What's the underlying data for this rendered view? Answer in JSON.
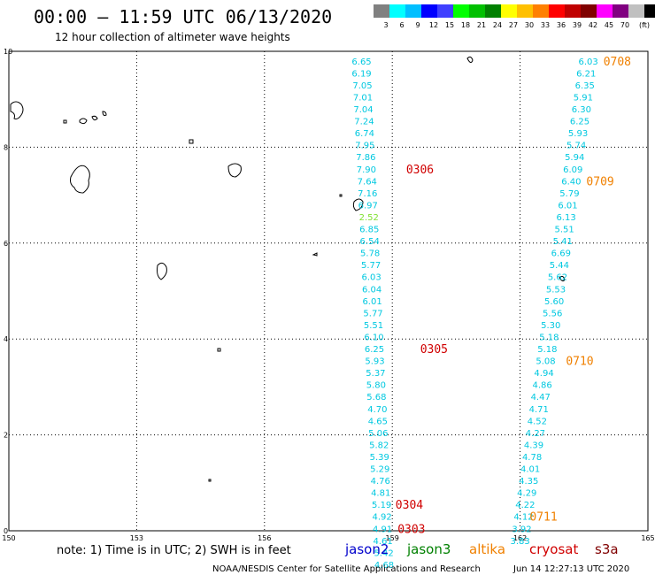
{
  "header": {
    "title": "00:00 – 11:59 UTC 06/13/2020",
    "subtitle": "12 hour collection of altimeter wave heights"
  },
  "legend": {
    "colors": [
      "#808080",
      "#00ffff",
      "#00bfff",
      "#0000ff",
      "#4040ff",
      "#00ff00",
      "#00c000",
      "#008000",
      "#ffff00",
      "#ffc000",
      "#ff8000",
      "#ff0000",
      "#c00000",
      "#800000",
      "#ff00ff",
      "#800080",
      "#c0c0c0",
      "#000000"
    ],
    "labels": [
      "3",
      "6",
      "9",
      "12",
      "15",
      "18",
      "21",
      "24",
      "27",
      "30",
      "33",
      "36",
      "39",
      "42",
      "45",
      "70",
      "(ft)"
    ]
  },
  "axes": {
    "x_ticks": [
      "150",
      "153",
      "156",
      "159",
      "162",
      "165"
    ],
    "y_ticks": [
      "0",
      "2",
      "4",
      "6",
      "8",
      "10"
    ]
  },
  "tracks": [
    {
      "color": "#00c8e0",
      "points": [
        {
          "lon": 158.28,
          "lat": 9.8,
          "v": "6.65"
        },
        {
          "lon": 158.28,
          "lat": 9.55,
          "v": "6.19"
        },
        {
          "lon": 158.3,
          "lat": 9.3,
          "v": "7.05"
        },
        {
          "lon": 158.31,
          "lat": 9.05,
          "v": "7.01"
        },
        {
          "lon": 158.32,
          "lat": 8.8,
          "v": "7.04"
        },
        {
          "lon": 158.34,
          "lat": 8.55,
          "v": "7.24"
        },
        {
          "lon": 158.35,
          "lat": 8.3,
          "v": "6.74"
        },
        {
          "lon": 158.36,
          "lat": 8.05,
          "v": "7.95"
        },
        {
          "lon": 158.38,
          "lat": 7.8,
          "v": "7.86"
        },
        {
          "lon": 158.39,
          "lat": 7.55,
          "v": "7.90"
        },
        {
          "lon": 158.41,
          "lat": 7.3,
          "v": "7.64"
        },
        {
          "lon": 158.42,
          "lat": 7.05,
          "v": "7.16"
        },
        {
          "lon": 158.43,
          "lat": 6.8,
          "v": "6.97"
        },
        {
          "lon": 158.46,
          "lat": 6.3,
          "v": "6.85"
        },
        {
          "lon": 158.47,
          "lat": 6.05,
          "v": "6.54"
        },
        {
          "lon": 158.48,
          "lat": 5.8,
          "v": "5.78"
        },
        {
          "lon": 158.5,
          "lat": 5.55,
          "v": "5.77"
        },
        {
          "lon": 158.51,
          "lat": 5.3,
          "v": "6.03"
        },
        {
          "lon": 158.52,
          "lat": 5.05,
          "v": "6.04"
        },
        {
          "lon": 158.53,
          "lat": 4.8,
          "v": "6.01"
        },
        {
          "lon": 158.55,
          "lat": 4.55,
          "v": "5.77"
        },
        {
          "lon": 158.56,
          "lat": 4.3,
          "v": "5.51"
        },
        {
          "lon": 158.57,
          "lat": 4.05,
          "v": "6.10"
        },
        {
          "lon": 158.58,
          "lat": 3.8,
          "v": "6.25"
        },
        {
          "lon": 158.59,
          "lat": 3.55,
          "v": "5.93"
        },
        {
          "lon": 158.61,
          "lat": 3.3,
          "v": "5.37"
        },
        {
          "lon": 158.62,
          "lat": 3.05,
          "v": "5.80"
        },
        {
          "lon": 158.63,
          "lat": 2.8,
          "v": "5.68"
        },
        {
          "lon": 158.65,
          "lat": 2.55,
          "v": "4.70"
        },
        {
          "lon": 158.66,
          "lat": 2.3,
          "v": "4.65"
        },
        {
          "lon": 158.67,
          "lat": 2.05,
          "v": "5.06"
        },
        {
          "lon": 158.69,
          "lat": 1.8,
          "v": "5.82"
        },
        {
          "lon": 158.7,
          "lat": 1.55,
          "v": "5.39"
        },
        {
          "lon": 158.71,
          "lat": 1.3,
          "v": "5.29"
        },
        {
          "lon": 158.72,
          "lat": 1.05,
          "v": "4.76"
        },
        {
          "lon": 158.73,
          "lat": 0.8,
          "v": "4.81"
        },
        {
          "lon": 158.75,
          "lat": 0.55,
          "v": "5.19"
        },
        {
          "lon": 158.76,
          "lat": 0.3,
          "v": "4.92"
        },
        {
          "lon": 158.77,
          "lat": 0.05,
          "v": "4.91"
        },
        {
          "lon": 158.78,
          "lat": -0.2,
          "v": "4.61"
        },
        {
          "lon": 158.8,
          "lat": -0.45,
          "v": "5.42"
        },
        {
          "lon": 158.81,
          "lat": -0.7,
          "v": "4.68"
        }
      ]
    },
    {
      "color": "#80e030",
      "points": [
        {
          "lon": 158.45,
          "lat": 6.55,
          "v": "2.52"
        }
      ]
    },
    {
      "color": "#00c8e0",
      "points": [
        {
          "lon": 163.6,
          "lat": 9.8,
          "v": "6.03"
        },
        {
          "lon": 163.55,
          "lat": 9.55,
          "v": "6.21"
        },
        {
          "lon": 163.52,
          "lat": 9.3,
          "v": "6.35"
        },
        {
          "lon": 163.48,
          "lat": 9.05,
          "v": "5.91"
        },
        {
          "lon": 163.44,
          "lat": 8.8,
          "v": "6.30"
        },
        {
          "lon": 163.4,
          "lat": 8.55,
          "v": "6.25"
        },
        {
          "lon": 163.36,
          "lat": 8.3,
          "v": "5.93"
        },
        {
          "lon": 163.32,
          "lat": 8.05,
          "v": "5.74"
        },
        {
          "lon": 163.28,
          "lat": 7.8,
          "v": "5.94"
        },
        {
          "lon": 163.24,
          "lat": 7.55,
          "v": "6.09"
        },
        {
          "lon": 163.2,
          "lat": 7.3,
          "v": "6.40"
        },
        {
          "lon": 163.16,
          "lat": 7.05,
          "v": "5.79"
        },
        {
          "lon": 163.12,
          "lat": 6.8,
          "v": "6.01"
        },
        {
          "lon": 163.08,
          "lat": 6.55,
          "v": "6.13"
        },
        {
          "lon": 163.04,
          "lat": 6.3,
          "v": "5.51"
        },
        {
          "lon": 163.0,
          "lat": 6.05,
          "v": "5.41"
        },
        {
          "lon": 162.96,
          "lat": 5.8,
          "v": "6.69"
        },
        {
          "lon": 162.92,
          "lat": 5.55,
          "v": "5.44"
        },
        {
          "lon": 162.88,
          "lat": 5.3,
          "v": "5.62"
        },
        {
          "lon": 162.84,
          "lat": 5.05,
          "v": "5.53"
        },
        {
          "lon": 162.8,
          "lat": 4.8,
          "v": "5.60"
        },
        {
          "lon": 162.76,
          "lat": 4.55,
          "v": "5.56"
        },
        {
          "lon": 162.72,
          "lat": 4.3,
          "v": "5.30"
        },
        {
          "lon": 162.68,
          "lat": 4.05,
          "v": "5.18"
        },
        {
          "lon": 162.64,
          "lat": 3.8,
          "v": "5.18"
        },
        {
          "lon": 162.6,
          "lat": 3.55,
          "v": "5.08"
        },
        {
          "lon": 162.56,
          "lat": 3.3,
          "v": "4.94"
        },
        {
          "lon": 162.52,
          "lat": 3.05,
          "v": "4.86"
        },
        {
          "lon": 162.48,
          "lat": 2.8,
          "v": "4.47"
        },
        {
          "lon": 162.44,
          "lat": 2.55,
          "v": "4.71"
        },
        {
          "lon": 162.4,
          "lat": 2.3,
          "v": "4.52"
        },
        {
          "lon": 162.36,
          "lat": 2.05,
          "v": "4.27"
        },
        {
          "lon": 162.32,
          "lat": 1.8,
          "v": "4.39"
        },
        {
          "lon": 162.28,
          "lat": 1.55,
          "v": "4.78"
        },
        {
          "lon": 162.24,
          "lat": 1.3,
          "v": "4.01"
        },
        {
          "lon": 162.2,
          "lat": 1.05,
          "v": "4.35"
        },
        {
          "lon": 162.16,
          "lat": 0.8,
          "v": "4.29"
        },
        {
          "lon": 162.12,
          "lat": 0.55,
          "v": "4.22"
        },
        {
          "lon": 162.08,
          "lat": 0.3,
          "v": "4.12"
        },
        {
          "lon": 162.04,
          "lat": 0.05,
          "v": "3.92"
        },
        {
          "lon": 162.0,
          "lat": -0.2,
          "v": "3.83"
        }
      ]
    }
  ],
  "pass_labels": [
    {
      "text": "0306",
      "color": "#d00000",
      "lon": 159.65,
      "lat": 7.55
    },
    {
      "text": "0305",
      "color": "#d00000",
      "lon": 159.98,
      "lat": 3.8
    },
    {
      "text": "0304",
      "color": "#d00000",
      "lon": 159.4,
      "lat": 0.55
    },
    {
      "text": "0303",
      "color": "#d00000",
      "lon": 159.45,
      "lat": 0.05
    },
    {
      "text": "0708",
      "color": "#f08000",
      "lon": 164.28,
      "lat": 9.8
    },
    {
      "text": "0709",
      "color": "#f08000",
      "lon": 163.88,
      "lat": 7.3
    },
    {
      "text": "0710",
      "color": "#f08000",
      "lon": 163.4,
      "lat": 3.55
    },
    {
      "text": "0711",
      "color": "#f08000",
      "lon": 162.55,
      "lat": 0.3
    }
  ],
  "footer": {
    "note": "note:  1) Time is in UTC;  2) SWH is in feet",
    "satellites": [
      {
        "name": "jason2",
        "color": "#0000cc"
      },
      {
        "name": "jason3",
        "color": "#008000"
      },
      {
        "name": "altika",
        "color": "#f08000"
      },
      {
        "name": "cryosat",
        "color": "#d00000"
      },
      {
        "name": "s3a",
        "color": "#800000"
      }
    ],
    "credit": "NOAA/NESDIS Center for Satellite Applications and Research",
    "timestamp": "Jun 14 12:27:13 UTC 2020"
  }
}
